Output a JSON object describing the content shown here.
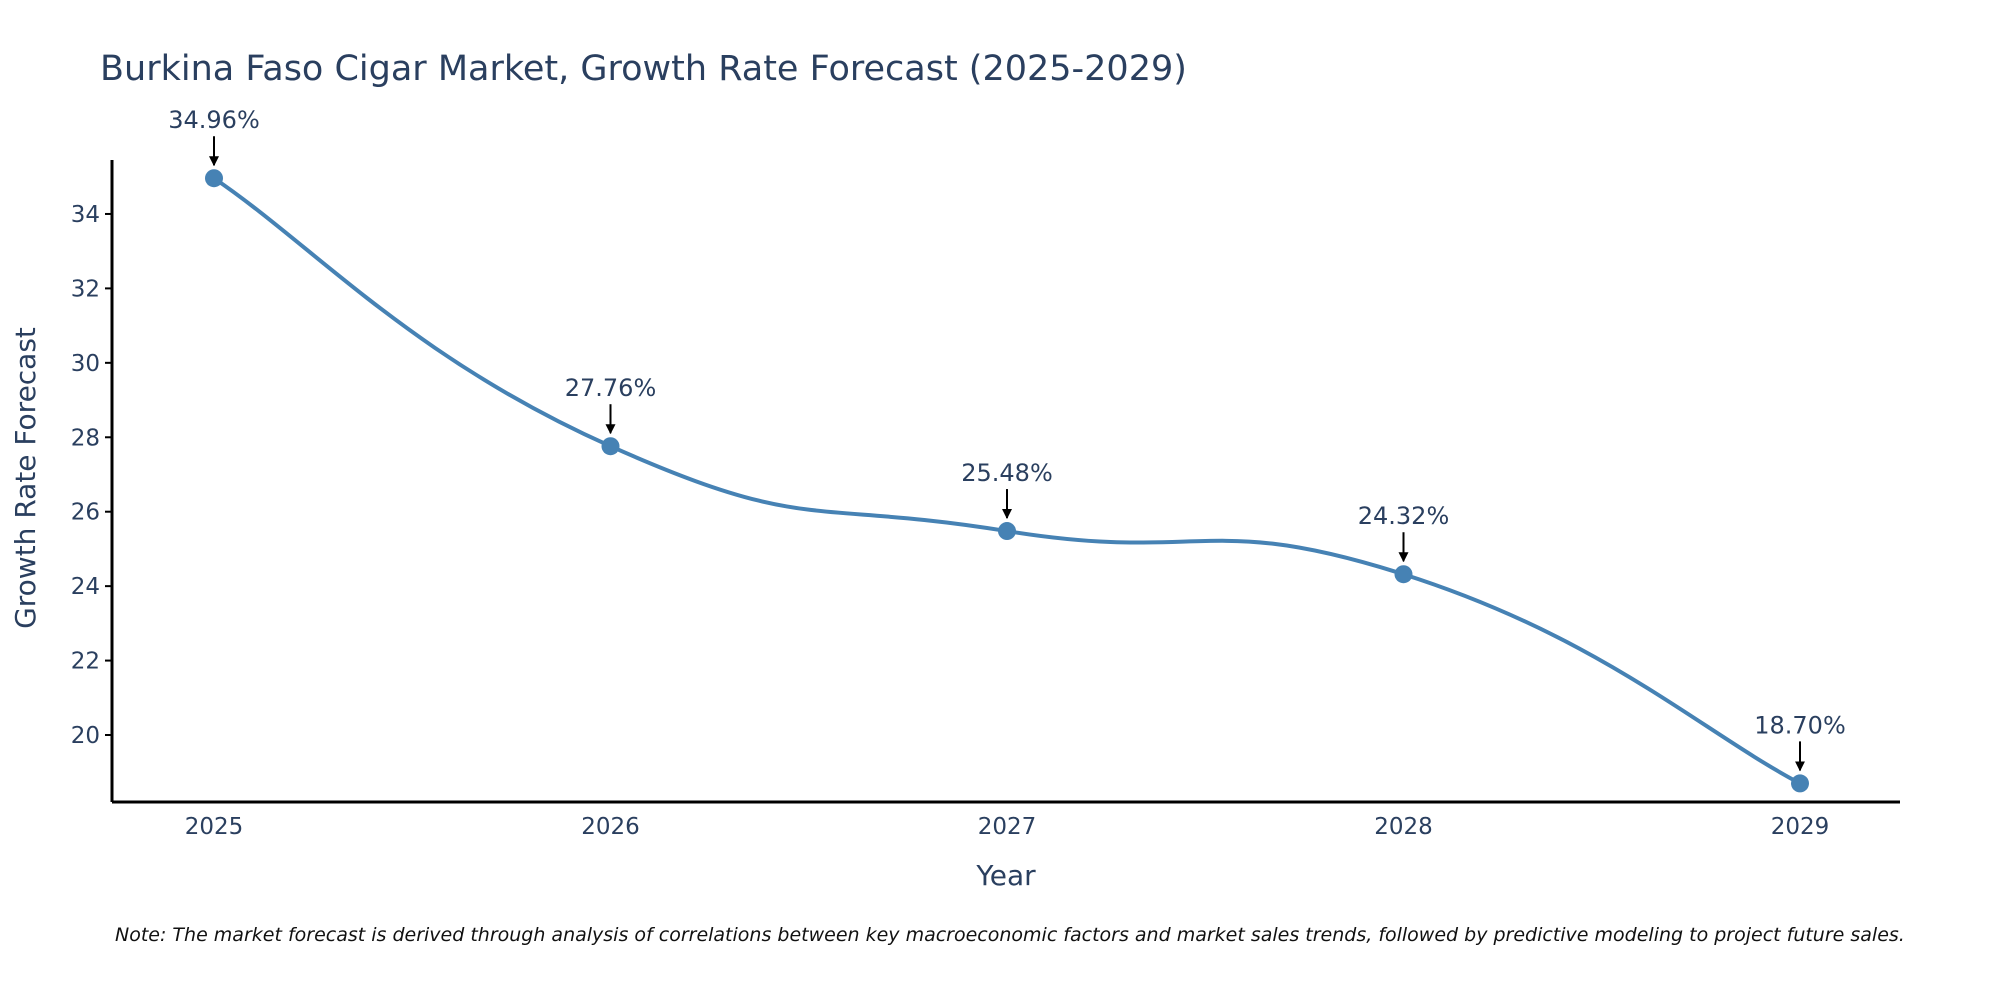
{
  "chart_data": {
    "type": "line",
    "title": "Burkina Faso Cigar Market, Growth Rate Forecast (2025-2029)",
    "xlabel": "Year",
    "ylabel": "Growth Rate Forecast",
    "categories": [
      "2025",
      "2026",
      "2027",
      "2028",
      "2029"
    ],
    "values": [
      34.96,
      27.76,
      25.48,
      24.32,
      18.7
    ],
    "value_labels": [
      "34.96%",
      "27.76%",
      "25.48%",
      "24.32%",
      "18.70%"
    ],
    "y_ticks": [
      20,
      22,
      24,
      26,
      28,
      30,
      32,
      34
    ],
    "ylim": [
      18.2,
      35.45
    ],
    "grid": false,
    "line_color": "#4682b4",
    "axis_color": "#000000",
    "text_color": "#2a3f5f"
  },
  "footnote": "Note: The market forecast is derived through analysis of correlations between key macroeconomic factors and market sales trends, followed by predictive modeling to project future sales."
}
